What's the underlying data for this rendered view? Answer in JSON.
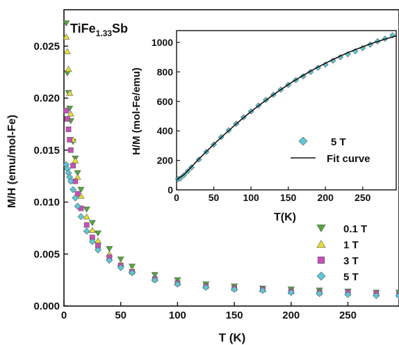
{
  "chart_data": [
    {
      "id": "main",
      "type": "scatter",
      "title": "",
      "annotation": "TiFe1.33Sb",
      "annotation_parts": {
        "base": "TiFe",
        "sub": "1.33",
        "suffix": "Sb"
      },
      "xlabel": "T (K)",
      "ylabel": "M/H (emu/mol-Fe)",
      "xlim": [
        0,
        295
      ],
      "ylim": [
        0,
        0.0285
      ],
      "xticks": [
        0,
        50,
        100,
        150,
        200,
        250
      ],
      "xtick_labels": [
        "0",
        "50",
        "100",
        "150",
        "200",
        "250"
      ],
      "yticks": [
        0,
        0.005,
        0.01,
        0.015,
        0.02,
        0.025
      ],
      "ytick_labels": [
        "0.000",
        "0.005",
        "0.010",
        "0.015",
        "0.020",
        "0.025"
      ],
      "legend_position": "bottom-right",
      "series": [
        {
          "name": "0.1 T",
          "marker": "triangle-down",
          "color": "#4fa83a",
          "x": [
            2,
            3,
            4,
            5,
            6,
            8,
            10,
            12,
            15,
            20,
            25,
            30,
            40,
            50,
            60,
            80,
            100,
            125,
            150,
            175,
            200,
            225,
            250,
            275,
            295
          ],
          "y": [
            0.0272,
            0.0224,
            0.0205,
            0.019,
            0.0178,
            0.0158,
            0.0142,
            0.0128,
            0.0112,
            0.0093,
            0.008,
            0.007,
            0.0055,
            0.0045,
            0.0038,
            0.003,
            0.0025,
            0.0021,
            0.0019,
            0.0017,
            0.0016,
            0.0015,
            0.0014,
            0.0013,
            0.0013
          ]
        },
        {
          "name": "1 T",
          "marker": "triangle-up",
          "color": "#e8e030",
          "x": [
            2,
            3,
            4,
            5,
            6,
            8,
            10,
            12,
            15,
            20,
            25,
            30,
            40,
            50,
            60,
            80,
            100,
            125,
            150,
            175,
            200,
            225,
            250,
            275,
            295
          ],
          "y": [
            0.0259,
            0.0245,
            0.0228,
            0.0205,
            0.0185,
            0.016,
            0.014,
            0.0124,
            0.0106,
            0.0086,
            0.0073,
            0.0063,
            0.005,
            0.0041,
            0.0035,
            0.0027,
            0.0023,
            0.002,
            0.0018,
            0.0016,
            0.0015,
            0.0014,
            0.0013,
            0.0012,
            0.0012
          ]
        },
        {
          "name": "3 T",
          "marker": "square",
          "color": "#c84fb8",
          "x": [
            2,
            3,
            4,
            5,
            6,
            8,
            10,
            12,
            15,
            20,
            25,
            30,
            40,
            50,
            60,
            80,
            100,
            125,
            150,
            175,
            200,
            225,
            250,
            275,
            295
          ],
          "y": [
            0.0188,
            0.018,
            0.017,
            0.016,
            0.015,
            0.0135,
            0.012,
            0.0108,
            0.0094,
            0.0078,
            0.0066,
            0.0058,
            0.0047,
            0.0039,
            0.0033,
            0.0026,
            0.0022,
            0.0019,
            0.0017,
            0.0016,
            0.0014,
            0.0013,
            0.0013,
            0.0012,
            0.0011
          ]
        },
        {
          "name": "5 T",
          "marker": "diamond",
          "color": "#5cc8d8",
          "x": [
            2,
            3,
            4,
            5,
            6,
            8,
            10,
            12,
            15,
            20,
            25,
            30,
            40,
            50,
            60,
            80,
            100,
            125,
            150,
            175,
            200,
            225,
            250,
            275,
            295
          ],
          "y": [
            0.0136,
            0.0132,
            0.0128,
            0.0124,
            0.012,
            0.0112,
            0.0104,
            0.0096,
            0.0086,
            0.0072,
            0.0062,
            0.0054,
            0.0044,
            0.0037,
            0.0032,
            0.0025,
            0.0021,
            0.0018,
            0.0016,
            0.0015,
            0.0013,
            0.0012,
            0.0011,
            0.001,
            0.001
          ]
        }
      ]
    },
    {
      "id": "inset",
      "type": "scatter",
      "xlabel": "T(K)",
      "ylabel": "H/M (mol-Fe/emu)",
      "xlim": [
        0,
        295
      ],
      "ylim": [
        0,
        1080
      ],
      "xticks": [
        0,
        50,
        100,
        150,
        200,
        250
      ],
      "xtick_labels": [
        "0",
        "50",
        "100",
        "150",
        "200",
        "250"
      ],
      "yticks": [
        0,
        200,
        400,
        600,
        800,
        1000
      ],
      "ytick_labels": [
        "0",
        "200",
        "400",
        "600",
        "800",
        "1000"
      ],
      "legend_position": "bottom-right",
      "series": [
        {
          "name": "5 T",
          "marker": "diamond",
          "color": "#5cc8d8",
          "x": [
            2,
            5,
            10,
            15,
            20,
            30,
            40,
            50,
            60,
            70,
            80,
            90,
            100,
            110,
            120,
            130,
            140,
            150,
            160,
            170,
            180,
            190,
            200,
            210,
            220,
            230,
            240,
            250,
            260,
            270,
            280,
            290
          ],
          "y": [
            73,
            78,
            100,
            126,
            152,
            206,
            258,
            308,
            358,
            404,
            448,
            492,
            532,
            572,
            610,
            645,
            680,
            712,
            744,
            770,
            800,
            828,
            850,
            876,
            900,
            920,
            940,
            962,
            985,
            1008,
            1025,
            1048
          ]
        },
        {
          "name": "Fit curve",
          "marker": "line",
          "color": "#111111",
          "x": [
            0,
            10,
            20,
            30,
            40,
            50,
            60,
            70,
            80,
            90,
            100,
            110,
            120,
            130,
            140,
            150,
            160,
            170,
            180,
            190,
            200,
            210,
            220,
            230,
            240,
            250,
            260,
            270,
            280,
            290,
            295
          ],
          "y": [
            68,
            103,
            156,
            209,
            259,
            309,
            357,
            402,
            447,
            490,
            531,
            570,
            608,
            645,
            680,
            714,
            746,
            776,
            805,
            833,
            859,
            884,
            908,
            930,
            951,
            970,
            989,
            1006,
            1022,
            1037,
            1044
          ]
        }
      ]
    }
  ]
}
